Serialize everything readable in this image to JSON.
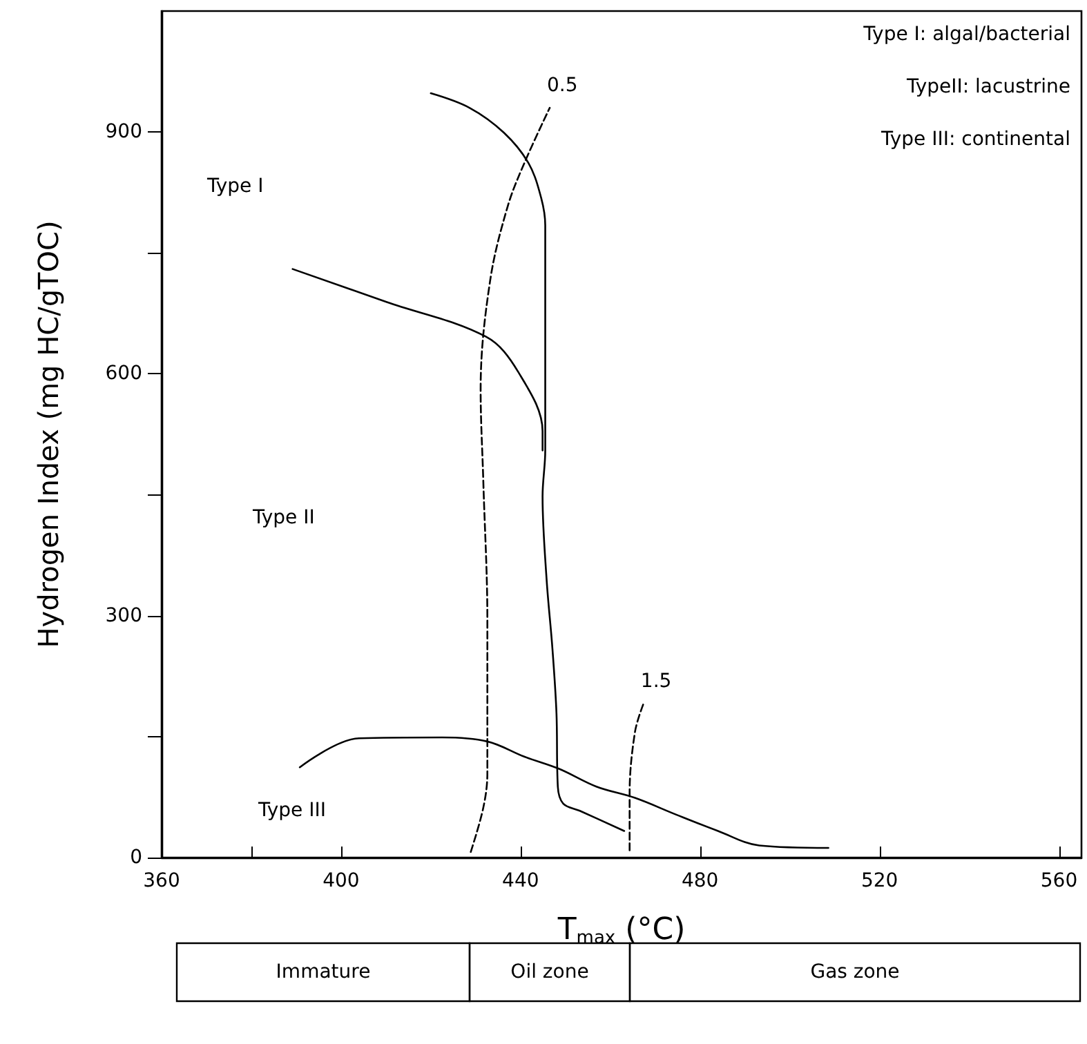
{
  "chart_data": {
    "type": "line",
    "xlabel": "T$_{max}$ (°C)",
    "ylabel": "Hydrogen Index (mg HC/gTOC)",
    "xlim": [
      360,
      565
    ],
    "ylim": [
      0,
      1050
    ],
    "xticks": [
      360,
      {
        "value": 380,
        "label": null
      },
      400,
      440,
      480,
      520,
      560
    ],
    "yticks": [
      0,
      {
        "value": 150,
        "label": null
      },
      300,
      {
        "value": 450,
        "label": null
      },
      600,
      {
        "value": 750,
        "label": null
      },
      900
    ],
    "grid": false,
    "legend": false,
    "marker": "none",
    "series": [
      {
        "color": "#000000",
        "line_style": "solid",
        "x": [
          420,
          428.6,
          436.3,
          441.8,
          444.6,
          445.5,
          445.5,
          445.5,
          444.9,
          445.8,
          447.1,
          448,
          448.3,
          449.5,
          453.2,
          463.1
        ],
        "values": [
          948,
          930,
          899,
          861,
          818,
          784,
          637,
          505,
          448,
          345,
          259,
          179,
          88,
          67,
          58,
          33
        ]
      },
      {
        "color": "#000000",
        "line_style": "solid",
        "x": [
          389.2,
          410.2,
          432.3,
          439.4,
          444.9,
          444.9
        ],
        "values": [
          730,
          689,
          646,
          603,
          529,
          505
        ]
      },
      {
        "color": "#000000",
        "line_style": "solid",
        "x": [
          390.8,
          404,
          422.5,
          432.6,
          440.9,
          448.6,
          456.9,
          465.5,
          474.8,
          484,
          493.2,
          508.6
        ],
        "values": [
          112,
          148,
          149,
          144,
          125,
          110,
          88,
          74,
          53,
          33,
          15,
          12
        ]
      },
      {
        "name": "0.5",
        "color": "#000000",
        "line_style": "dashed",
        "x": [
          428.9,
          431.7,
          432.6,
          432.6,
          431.7,
          431.1,
          433.2,
          437.2,
          441.2,
          446.5
        ],
        "values": [
          7,
          62,
          105,
          294,
          466,
          581,
          715,
          809,
          866,
          930
        ]
      },
      {
        "name": "1.5",
        "color": "#000000",
        "line_style": "dashed",
        "x": [
          464.3,
          464.3,
          465.5,
          467.4
        ],
        "values": [
          9,
          79,
          156,
          191
        ]
      }
    ],
    "annotations": [
      "Type I",
      "Type II",
      "Type III",
      "Type I: algal/bacterial",
      "TypeII: lacustrine",
      "Type III: continental",
      "Immature",
      "Oil zone",
      "Gas zone"
    ]
  }
}
